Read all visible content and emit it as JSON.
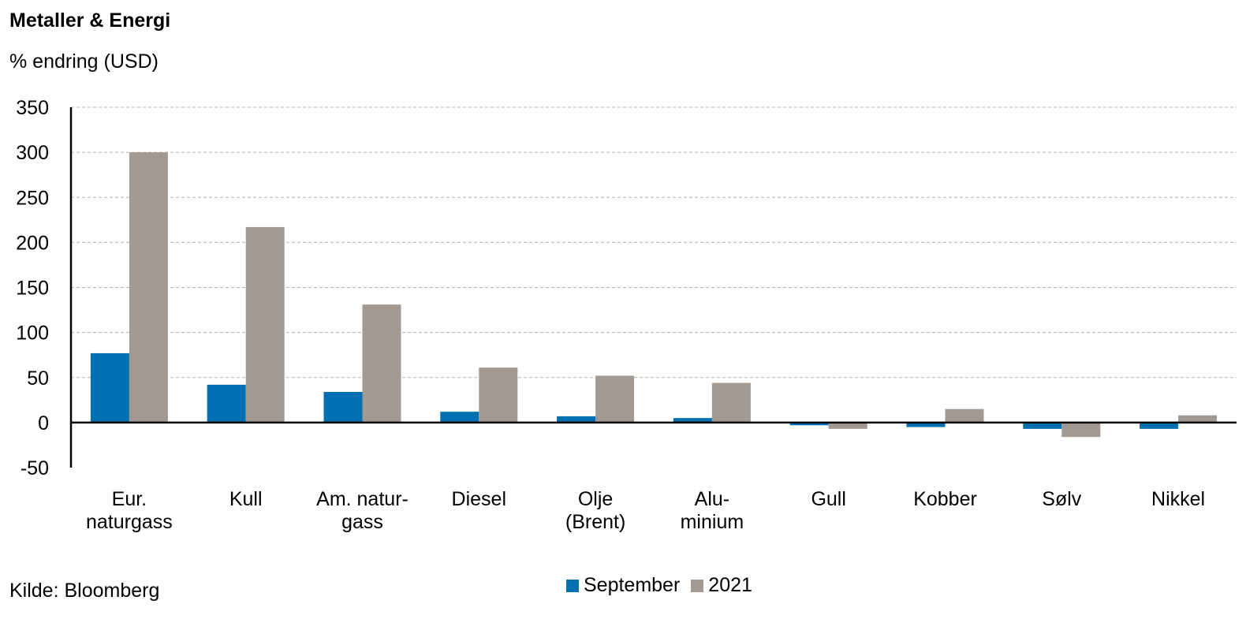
{
  "chart_data": {
    "type": "bar",
    "title": "Metaller & Energi",
    "ylabel": "% endring (USD)",
    "source": "Kilde: Bloomberg",
    "ylim": [
      -50,
      350
    ],
    "yticks": [
      350,
      300,
      250,
      200,
      150,
      100,
      50,
      0,
      -50
    ],
    "grid": true,
    "legend_position": "bottom",
    "categories": [
      [
        "Eur.",
        "naturgass"
      ],
      [
        "Kull"
      ],
      [
        "Am. natur-",
        "gass"
      ],
      [
        "Diesel"
      ],
      [
        "Olje",
        "(Brent)"
      ],
      [
        "Alu-",
        "minium"
      ],
      [
        "Gull"
      ],
      [
        "Kobber"
      ],
      [
        "Sølv"
      ],
      [
        "Nikkel"
      ]
    ],
    "series": [
      {
        "name": "September",
        "color": "#0070b0",
        "values": [
          77,
          42,
          34,
          12,
          7,
          5,
          -3,
          -5,
          -7,
          -7
        ]
      },
      {
        "name": "2021",
        "color": "#a39993",
        "values": [
          300,
          217,
          131,
          61,
          52,
          44,
          -7,
          15,
          -16,
          8
        ]
      }
    ]
  }
}
